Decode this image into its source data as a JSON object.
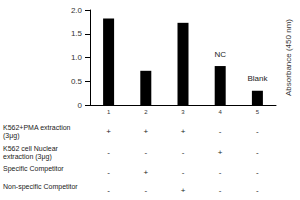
{
  "chart_data": {
    "type": "bar",
    "y_label": "Absorbance (450 nm)",
    "categories": [
      "1",
      "2",
      "3",
      "4",
      "5"
    ],
    "values": [
      1.82,
      0.72,
      1.73,
      0.82,
      0.3
    ],
    "color": "#000000",
    "ylim": [
      0,
      2
    ],
    "yticks": [
      0,
      0.5,
      {
        "value": 1,
        "label": "1.0"
      },
      1.5,
      {
        "value": 2,
        "label": "2.0"
      }
    ],
    "grid": false,
    "annotations": [
      {
        "category": "4",
        "text": "NC"
      },
      {
        "category": "5",
        "text": "Blank"
      }
    ],
    "table": {
      "rows": [
        {
          "label": "K562+PMA extraction (3μg)",
          "cells": [
            "+",
            "+",
            "+",
            "-",
            "-"
          ]
        },
        {
          "label": "K562 cell Nuclear extraction (3μg)",
          "cells": [
            "-",
            "-",
            "-",
            "+",
            "-"
          ]
        },
        {
          "label": "Specific Competitor",
          "cells": [
            "-",
            "+",
            "-",
            "-",
            "-"
          ]
        },
        {
          "label": "Non-specific Competitor",
          "cells": [
            "-",
            "-",
            "+",
            "-",
            "-"
          ]
        }
      ]
    }
  }
}
